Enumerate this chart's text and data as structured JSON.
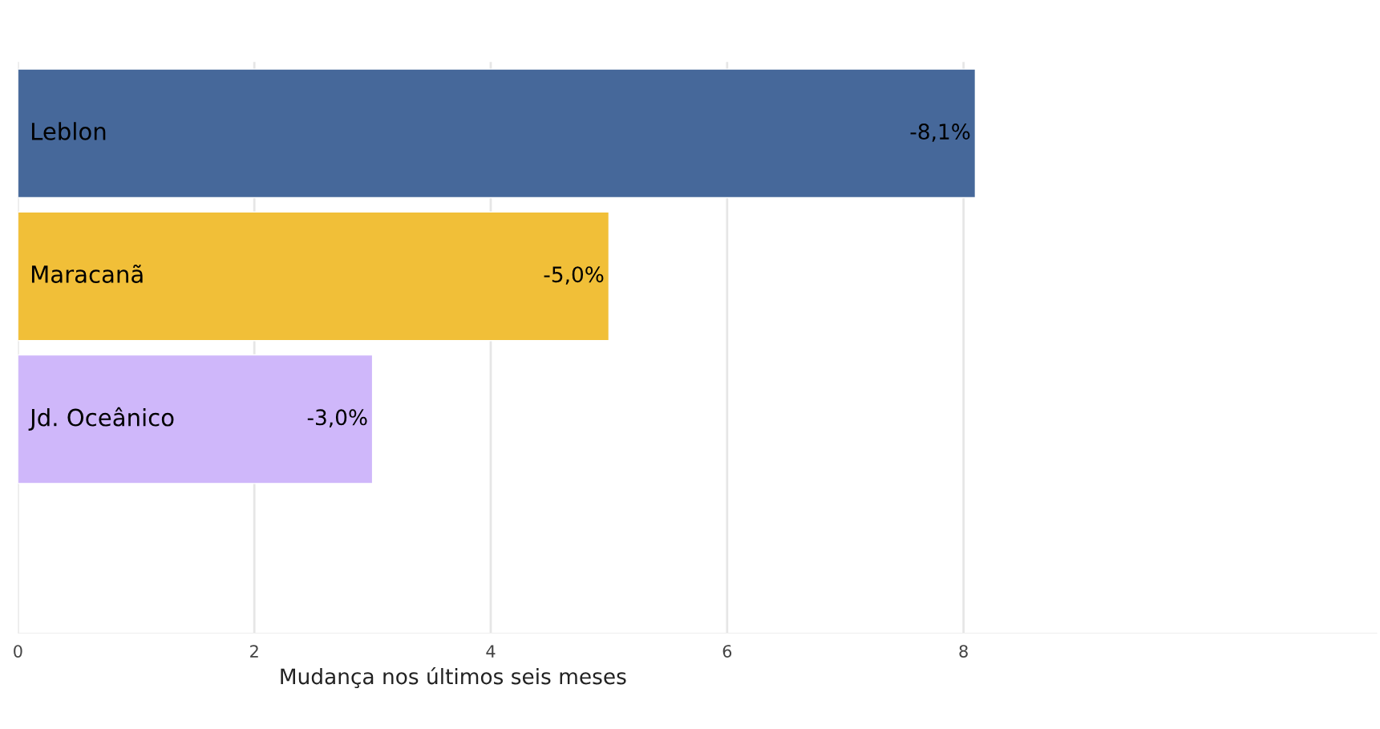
{
  "chart_data": {
    "type": "bar",
    "orientation": "horizontal",
    "xlabel": "Mudança nos últimos seis meses",
    "categories": [
      "Leblon",
      "Maracanã",
      "Jd. Oceânico",
      null
    ],
    "values": [
      8.1,
      5.0,
      3.0,
      null
    ],
    "colors": [
      "#46689a",
      "#f1bf38",
      "#cfb7fa",
      "#cccccc"
    ],
    "annotations": [
      {
        "text": "-8,1%",
        "x": 8.1,
        "y": "Leblon"
      },
      {
        "text": "-5,0%",
        "x": 5.0,
        "y": "Maracanã"
      },
      {
        "text": "-3,0%",
        "x": 3.0,
        "y": "Jd. Oceânico"
      }
    ],
    "xlim": [
      0,
      11.5
    ],
    "xticks": [
      0,
      2,
      4,
      6,
      8
    ],
    "grid": "x",
    "legend": false
  }
}
